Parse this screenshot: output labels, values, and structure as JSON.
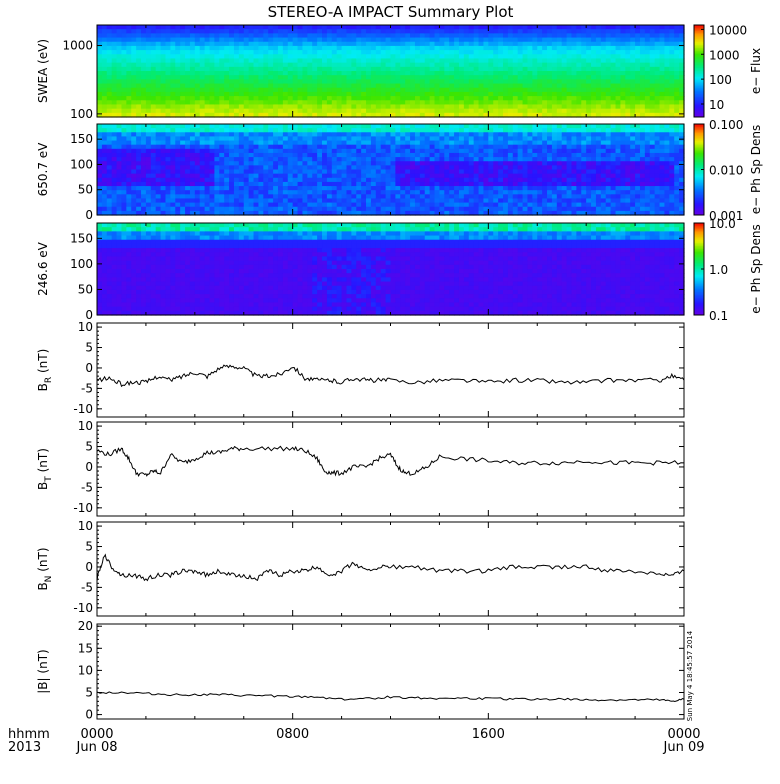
{
  "title": "STEREO-A IMPACT Summary Plot",
  "footer": {
    "left_top": "hhmm",
    "left_bottom": "2013",
    "ticks": [
      {
        "hhmm": "0000",
        "date": "Jun 08",
        "hour": 0
      },
      {
        "hhmm": "0800",
        "date": "",
        "hour": 8
      },
      {
        "hhmm": "1600",
        "date": "",
        "hour": 16
      },
      {
        "hhmm": "0000",
        "date": "Jun 09",
        "hour": 24
      }
    ],
    "timestamp": "Sun May  4 18:45:57 2014"
  },
  "chart_data": [
    {
      "type": "heatmap",
      "ylabel": "SWEA (eV)",
      "yscale": "log",
      "ylim": [
        90,
        2000
      ],
      "yticks": [
        {
          "v": 1000,
          "label": "1000"
        },
        {
          "v": 100,
          "label": "100"
        }
      ],
      "colorbar": {
        "label": "e− Flux",
        "scale": "log",
        "range": [
          3,
          15000
        ],
        "ticks": [
          {
            "v": 10000,
            "label": "10000"
          },
          {
            "v": 1000,
            "label": "1000"
          },
          {
            "v": 100,
            "label": "100"
          },
          {
            "v": 10,
            "label": "10"
          }
        ]
      }
    },
    {
      "type": "heatmap",
      "ylabel": "650.7 eV",
      "ylim": [
        0,
        180
      ],
      "yticks": [
        {
          "v": 0,
          "label": "0"
        },
        {
          "v": 50,
          "label": "50"
        },
        {
          "v": 100,
          "label": "100"
        },
        {
          "v": 150,
          "label": "150"
        }
      ],
      "colorbar": {
        "label": "e− Ph Sp Dens",
        "scale": "log",
        "range": [
          0.001,
          0.1
        ],
        "ticks": [
          {
            "v": 0.1,
            "label": "0.100"
          },
          {
            "v": 0.01,
            "label": "0.010"
          },
          {
            "v": 0.001,
            "label": "0.001"
          }
        ]
      }
    },
    {
      "type": "heatmap",
      "ylabel": "246.6 eV",
      "ylim": [
        0,
        180
      ],
      "yticks": [
        {
          "v": 0,
          "label": "0"
        },
        {
          "v": 50,
          "label": "50"
        },
        {
          "v": 100,
          "label": "100"
        },
        {
          "v": 150,
          "label": "150"
        }
      ],
      "colorbar": {
        "label": "e− Ph Sp Dens",
        "scale": "log",
        "range": [
          0.1,
          10
        ],
        "ticks": [
          {
            "v": 10,
            "label": "10.0"
          },
          {
            "v": 1,
            "label": "1.0"
          },
          {
            "v": 0.1,
            "label": "0.1"
          }
        ]
      }
    },
    {
      "type": "line",
      "ylabel_main": "B",
      "ylabel_sub": "R",
      "ylabel_unit": " (nT)",
      "ylim": [
        -12,
        11
      ],
      "yticks": [
        -10,
        -5,
        0,
        5,
        10
      ],
      "x": [
        0,
        0.5,
        1,
        1.5,
        2,
        2.5,
        3,
        3.5,
        4,
        4.5,
        5,
        5.5,
        6,
        6.5,
        7,
        7.5,
        8,
        8.5,
        9,
        9.5,
        10,
        10.5,
        11,
        11.5,
        12,
        13,
        14,
        15,
        16,
        17,
        18,
        19,
        20,
        21,
        22,
        23,
        23.5,
        24
      ],
      "y": [
        -3,
        -2.5,
        -4,
        -3.5,
        -3.5,
        -2,
        -3,
        -2,
        -1,
        -2,
        0,
        0.5,
        0,
        -2,
        -2,
        -1.5,
        0.5,
        -2.5,
        -3,
        -3,
        -3.5,
        -2.5,
        -3,
        -3,
        -3,
        -3.5,
        -3,
        -3,
        -3.5,
        -3,
        -3,
        -3.5,
        -3.5,
        -3,
        -3,
        -3,
        -2,
        -3
      ]
    },
    {
      "type": "line",
      "ylabel_main": "B",
      "ylabel_sub": "T",
      "ylabel_unit": " (nT)",
      "ylim": [
        -12,
        11
      ],
      "yticks": [
        -10,
        -5,
        0,
        5,
        10
      ],
      "x": [
        0,
        0.5,
        1,
        1.3,
        1.6,
        2,
        2.3,
        2.6,
        3,
        3.5,
        4,
        4.5,
        5,
        5.5,
        6,
        7,
        8,
        8.5,
        9,
        9.3,
        9.6,
        10,
        10.5,
        11,
        11.5,
        12,
        12.3,
        12.6,
        13,
        13.5,
        14,
        15,
        16,
        17,
        18,
        19,
        20,
        21,
        22,
        23,
        24
      ],
      "y": [
        4,
        3,
        4.5,
        2,
        -1.5,
        -2,
        -1,
        -1.5,
        3,
        1,
        2,
        3.5,
        3.5,
        4.5,
        4.5,
        4.5,
        4.5,
        4,
        2,
        -1,
        -1.5,
        -1.5,
        0,
        0,
        2,
        3,
        0,
        -1.5,
        -1.5,
        0,
        2.5,
        2,
        1.5,
        1,
        1,
        1,
        1.5,
        1,
        1,
        1,
        1
      ]
    },
    {
      "type": "line",
      "ylabel_main": "B",
      "ylabel_sub": "N",
      "ylabel_unit": " (nT)",
      "ylim": [
        -12,
        11
      ],
      "yticks": [
        -10,
        -5,
        0,
        5,
        10
      ],
      "x": [
        0,
        0.3,
        0.6,
        1,
        1.5,
        2,
        2.5,
        3,
        3.5,
        4,
        4.5,
        5,
        5.5,
        6,
        6.5,
        7,
        7.5,
        8,
        8.5,
        9,
        9.5,
        10,
        10.5,
        11,
        11.5,
        12,
        13,
        14,
        15,
        16,
        17,
        18,
        19,
        20,
        21,
        22,
        23,
        23.5,
        24
      ],
      "y": [
        -3,
        3,
        0,
        -2,
        -2,
        -3,
        -2,
        -2,
        -1,
        -1,
        -2,
        -1,
        -2,
        -2,
        -3,
        -1,
        -2,
        -1,
        -1,
        0,
        -2,
        -1,
        1,
        -1,
        0,
        0,
        0,
        -1,
        -1,
        -1,
        0,
        0,
        0,
        0,
        -1,
        -1,
        -1.5,
        -2,
        -1
      ]
    },
    {
      "type": "line",
      "ylabel_main": "|B|",
      "ylabel_sub": "",
      "ylabel_unit": " (nT)",
      "ylim": [
        -1,
        20.5
      ],
      "yticks": [
        0,
        5,
        10,
        15,
        20
      ],
      "x": [
        0,
        1,
        2,
        3,
        4,
        5,
        6,
        7,
        8,
        9,
        10,
        11,
        12,
        13,
        14,
        15,
        16,
        17,
        18,
        19,
        20,
        21,
        22,
        23,
        23.5,
        24
      ],
      "y": [
        5,
        5,
        4.8,
        4.5,
        4.5,
        4.5,
        4.3,
        4.3,
        4,
        4,
        3.5,
        3.6,
        4,
        3.8,
        3.7,
        3.7,
        3.6,
        3.5,
        3.5,
        3.5,
        3.3,
        3.3,
        3.3,
        3.3,
        3,
        3.5
      ]
    }
  ]
}
